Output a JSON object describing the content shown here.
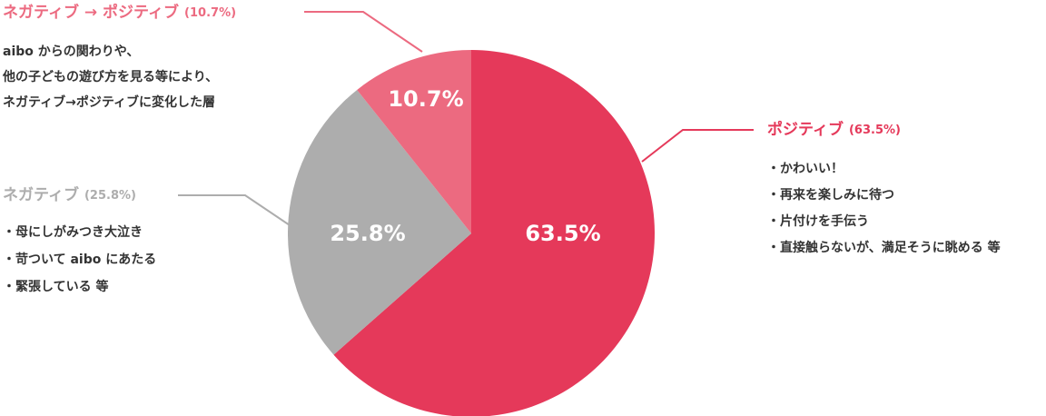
{
  "chart_data": {
    "type": "pie",
    "categories": [
      "ポジティブ",
      "ネガティブ",
      "ネガティブ → ポジティブ"
    ],
    "values": [
      63.5,
      25.8,
      10.7
    ],
    "value_labels": [
      "63.5%",
      "25.8%",
      "10.7%"
    ],
    "colors": [
      "#e5395a",
      "#adadad",
      "#ec6a80"
    ],
    "annotations": [
      {
        "share": "(63.5%)",
        "lines": [
          "・かわいい！",
          "・再来を楽しみに待つ",
          "・片付けを手伝う",
          "・直接触らないが、満足そうに眺める 等"
        ]
      },
      {
        "share": "(25.8%)",
        "lines": [
          "・母にしがみつき大泣き",
          "・苛ついて aibo にあたる",
          "・緊張している 等"
        ]
      },
      {
        "share": "(10.7%)",
        "lines": [
          "aibo からの関わりや、",
          "他の子どもの遊び方を見る等により、",
          "ネガティブ→ポジティブに変化した層"
        ]
      }
    ]
  }
}
